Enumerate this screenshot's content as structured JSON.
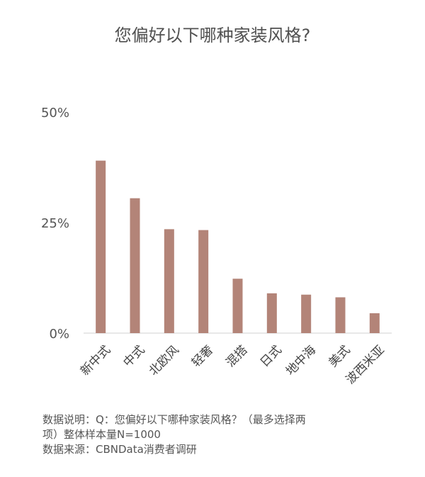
{
  "chart_data": {
    "type": "bar",
    "title": "您偏好以下哪种家装风格?",
    "categories": [
      "新中式",
      "中式",
      "北欧风",
      "轻奢",
      "混搭",
      "日式",
      "地中海",
      "美式",
      "波西米亚"
    ],
    "values": [
      39,
      30.5,
      23.5,
      23.3,
      12.3,
      9,
      8.7,
      8.1,
      4.5
    ],
    "ylim": [
      0,
      50
    ],
    "yticks": [
      "0%",
      "25%",
      "50%"
    ],
    "ytick_values": [
      0,
      25,
      50
    ],
    "xlabel": "",
    "ylabel": "",
    "grid": false,
    "bar_color": "#B38478",
    "axis_color": "#D0D0D0"
  },
  "footnote": {
    "line1": "数据说明：Q：您偏好以下哪种家装风格？（最多选择两",
    "line2": "项）整体样本量N=1000",
    "line3": "数据来源：CBNData消费者调研"
  }
}
